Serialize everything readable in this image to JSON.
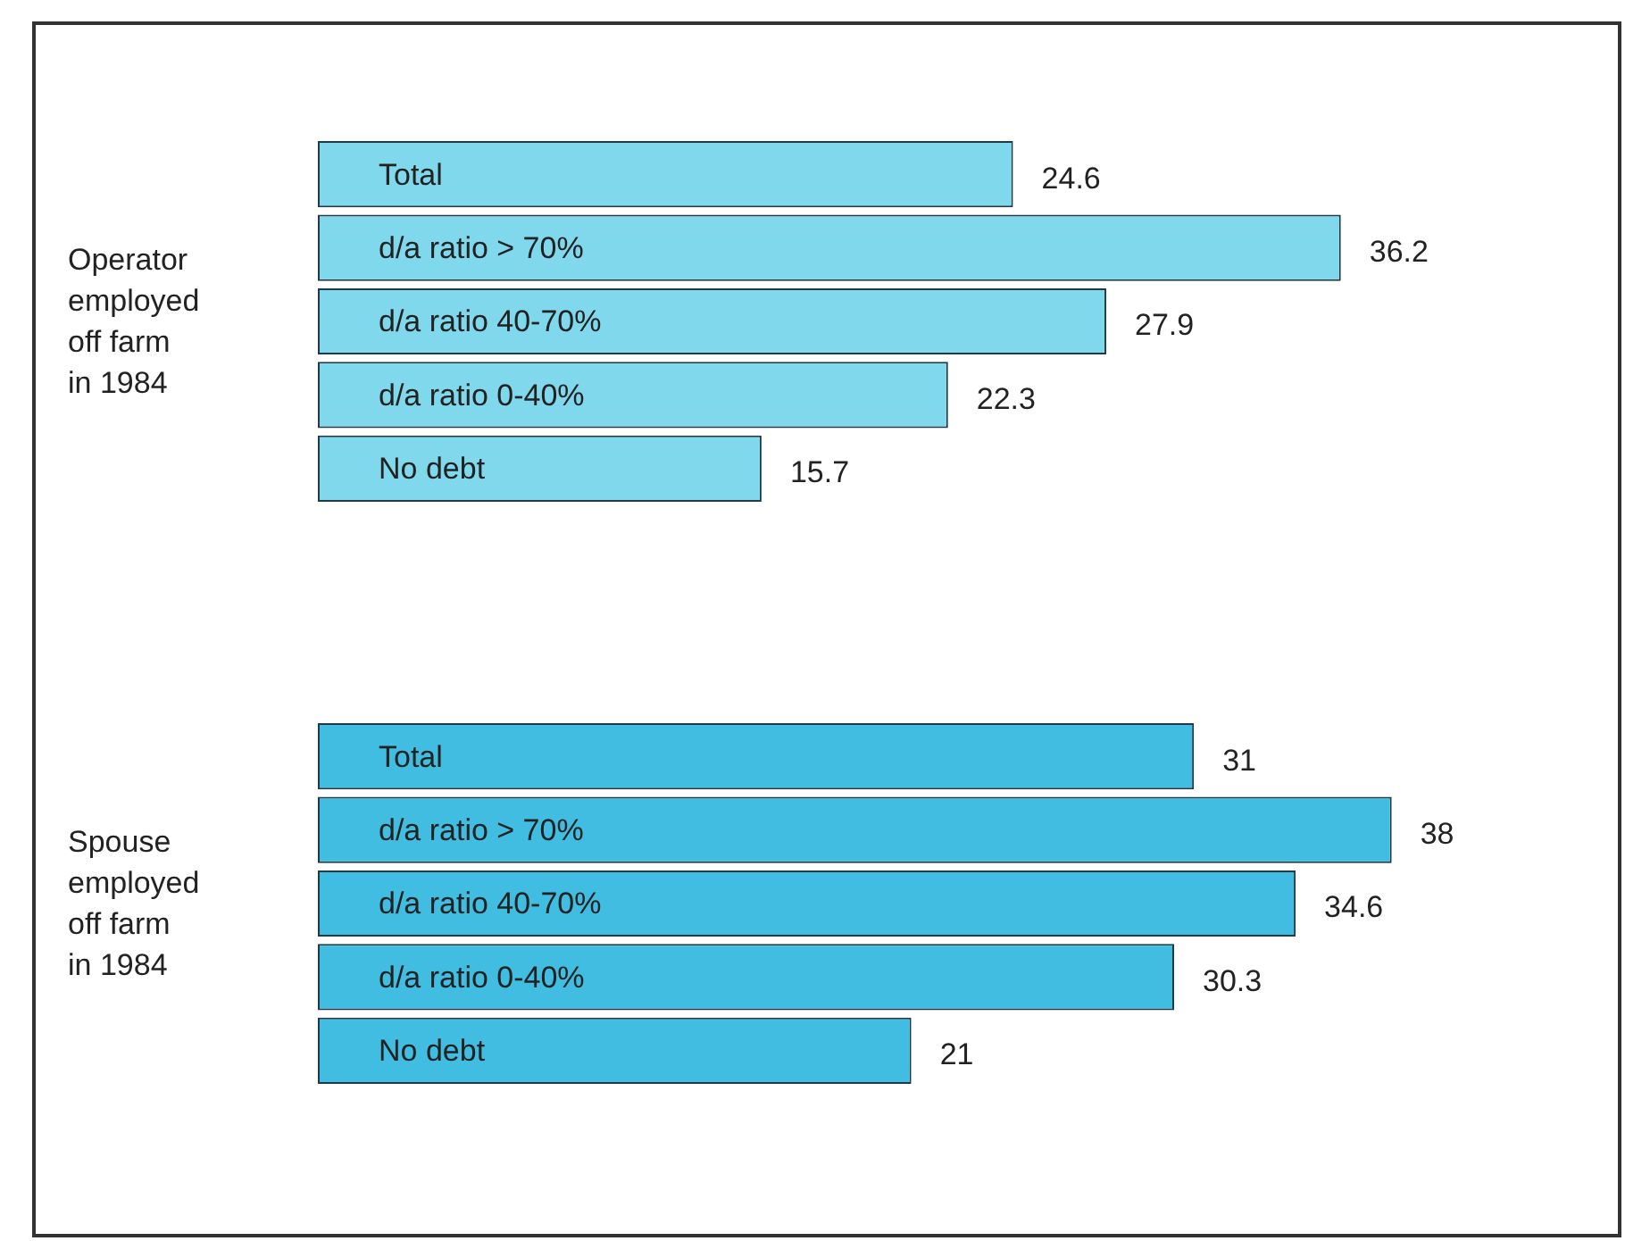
{
  "chart_data": [
    {
      "type": "bar",
      "orientation": "horizontal",
      "ylabel": "Operator employed off farm in 1984",
      "categories": [
        "Total",
        "d/a ratio > 70%",
        "d/a ratio 40-70%",
        "d/a ratio 0-40%",
        "No debt"
      ],
      "values": [
        24.6,
        36.2,
        27.9,
        22.3,
        15.7
      ],
      "color": "#80d8ec",
      "data_labels": true,
      "tick_labels": "y"
    },
    {
      "type": "bar",
      "orientation": "horizontal",
      "ylabel": "Spouse employed off farm in 1984",
      "categories": [
        "Total",
        "d/a ratio > 70%",
        "d/a ratio 40-70%",
        "d/a ratio 0-40%",
        "No debt"
      ],
      "values": [
        31,
        38,
        34.6,
        30.3,
        21
      ],
      "color": "#40bde0",
      "data_labels": true,
      "tick_labels": "y"
    }
  ]
}
